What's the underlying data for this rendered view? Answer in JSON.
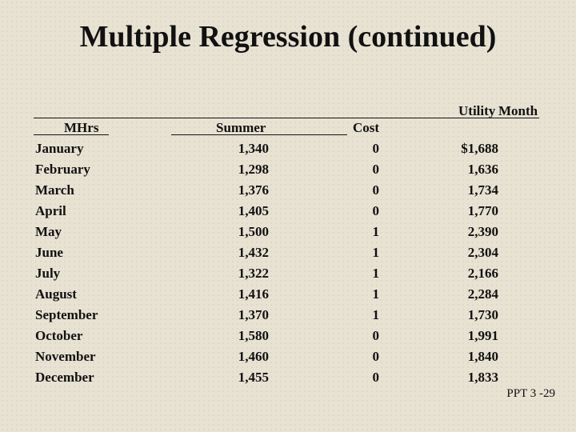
{
  "title": "Multiple Regression (continued)",
  "header": {
    "line1": [
      "Utility",
      "Month"
    ],
    "line2": [
      "MHrs",
      "Summer",
      "Cost"
    ]
  },
  "table": {
    "rows": [
      [
        "January",
        "1,340",
        "0",
        "$1,688"
      ],
      [
        "February",
        "1,298",
        "0",
        "1,636"
      ],
      [
        "March",
        "1,376",
        "0",
        "1,734"
      ],
      [
        "April",
        "1,405",
        "0",
        "1,770"
      ],
      [
        "May",
        "1,500",
        "1",
        "2,390"
      ],
      [
        "June",
        "1,432",
        "1",
        "2,304"
      ],
      [
        "July",
        "1,322",
        "1",
        "2,166"
      ],
      [
        "August",
        "1,416",
        "1",
        "2,284"
      ],
      [
        "September",
        "1,370",
        "1",
        "1,730"
      ],
      [
        "October",
        "1,580",
        "0",
        "1,991"
      ],
      [
        "November",
        "1,460",
        "0",
        "1,840"
      ],
      [
        "December",
        "1,455",
        "0",
        "1,833"
      ]
    ]
  },
  "footer": "PPT 3 -29"
}
